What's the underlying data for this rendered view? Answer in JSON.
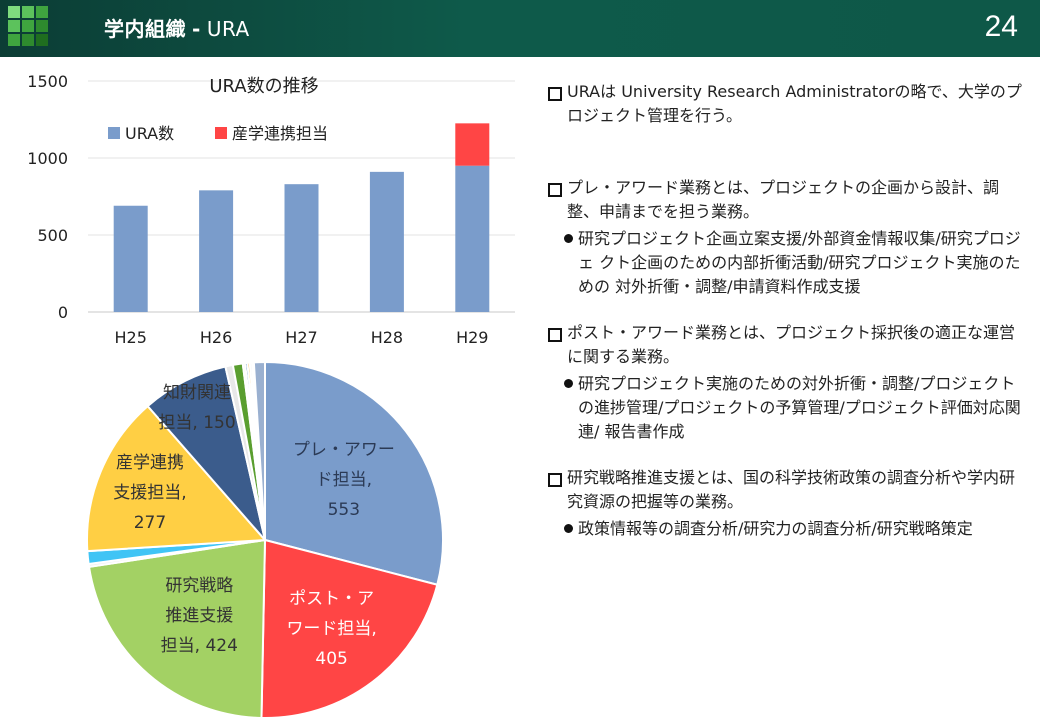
{
  "slide": {
    "title_bold": "学内組織",
    "title_sep": "-",
    "title_rest": "URA",
    "page_number": "24"
  },
  "text_panel": {
    "sections": [
      {
        "heading": "URAは University Research Administratorの略で、大学のプロジェクト管理を行う。",
        "bullets": []
      },
      {
        "heading": "プレ・アワード業務とは、プロジェクトの企画から設計、調整、申請までを担う業務。",
        "bullets": [
          "研究プロジェクト企画立案支援/外部資金情報収集/研究プロジェ クト企画のための内部折衝活動/研究プロジェクト実施のための 対外折衝・調整/申請資料作成支援"
        ]
      },
      {
        "heading": "ポスト・アワード業務とは、プロジェクト採択後の適正な運営に関する業務。",
        "bullets": [
          "研究プロジェクト実施のための対外折衝・調整/プロジェクトの進捗管理/プロジェクトの予算管理/プロジェクト評価対応関連/ 報告書作成"
        ]
      },
      {
        "heading": "研究戦略推進支援とは、国の科学技術政策の調査分析や学内研究資源の把握等の業務。",
        "bullets": [
          "政策情報等の調査分析/研究力の調査分析/研究戦略策定"
        ]
      }
    ]
  },
  "chart_data": [
    {
      "type": "bar",
      "stacked": true,
      "title": "URA数の推移",
      "categories": [
        "H25",
        "H26",
        "H27",
        "H28",
        "H29"
      ],
      "series": [
        {
          "name": "URA数",
          "values": [
            690,
            790,
            830,
            910,
            950
          ],
          "color": "#7a9ccb"
        },
        {
          "name": "産学連携担当",
          "values": [
            0,
            0,
            0,
            0,
            275
          ],
          "color": "#ff4545"
        }
      ],
      "ylim": [
        0,
        1500
      ],
      "yticks": [
        0,
        500,
        1000,
        1500
      ],
      "grid": true,
      "legend": "top-left"
    },
    {
      "type": "pie",
      "slices": [
        {
          "label": "プレ・アワード担当",
          "display": [
            "プレ・アワー",
            "ド担当,",
            "553"
          ],
          "value": 553,
          "color": "#7a9ccb",
          "label_color": "#2b3a55"
        },
        {
          "label": "ポスト・アワード担当",
          "display": [
            "ポスト・ア",
            "ワード担当,",
            "405"
          ],
          "value": 405,
          "color": "#ff4545",
          "label_color": "#ffffff"
        },
        {
          "label": "研究戦略推進支援担当",
          "display": [
            "研究戦略",
            "推進支援",
            "担当, 424"
          ],
          "value": 424,
          "color": "#a3d164",
          "label_color": "#333333"
        },
        {
          "label": "",
          "display": [],
          "value": 5,
          "color": "#f0f0f0",
          "label_color": "#333333"
        },
        {
          "label": "",
          "display": [],
          "value": 22,
          "color": "#40c4f5",
          "label_color": "#333333"
        },
        {
          "label": "産学連携支援担当",
          "display": [
            "産学連携",
            "支援担当,",
            "277"
          ],
          "value": 277,
          "color": "#ffcf44",
          "label_color": "#333333"
        },
        {
          "label": "知財関連担当",
          "display": [
            "知財関連",
            "担当, 150"
          ],
          "value": 150,
          "color": "#3b5c8c",
          "label_color": "#333333"
        },
        {
          "label": "",
          "display": [],
          "value": 13,
          "color": "#e8e8e8",
          "label_color": "#333333"
        },
        {
          "label": "",
          "display": [],
          "value": 17,
          "color": "#5a9e2f",
          "label_color": "#333333"
        },
        {
          "label": "",
          "display": [],
          "value": 4,
          "color": "#f0f0f0",
          "label_color": "#333333"
        },
        {
          "label": "",
          "display": [],
          "value": 4,
          "color": "#2a68a8",
          "label_color": "#333333"
        },
        {
          "label": "",
          "display": [],
          "value": 4,
          "color": "#f5a623",
          "label_color": "#333333"
        },
        {
          "label": "",
          "display": [],
          "value": 4,
          "color": "#f0f0f0",
          "label_color": "#333333"
        },
        {
          "label": "",
          "display": [],
          "value": 3,
          "color": "#6c9bd2",
          "label_color": "#333333"
        },
        {
          "label": "",
          "display": [],
          "value": 19,
          "color": "#9ab0d0",
          "label_color": "#333333"
        }
      ]
    }
  ]
}
